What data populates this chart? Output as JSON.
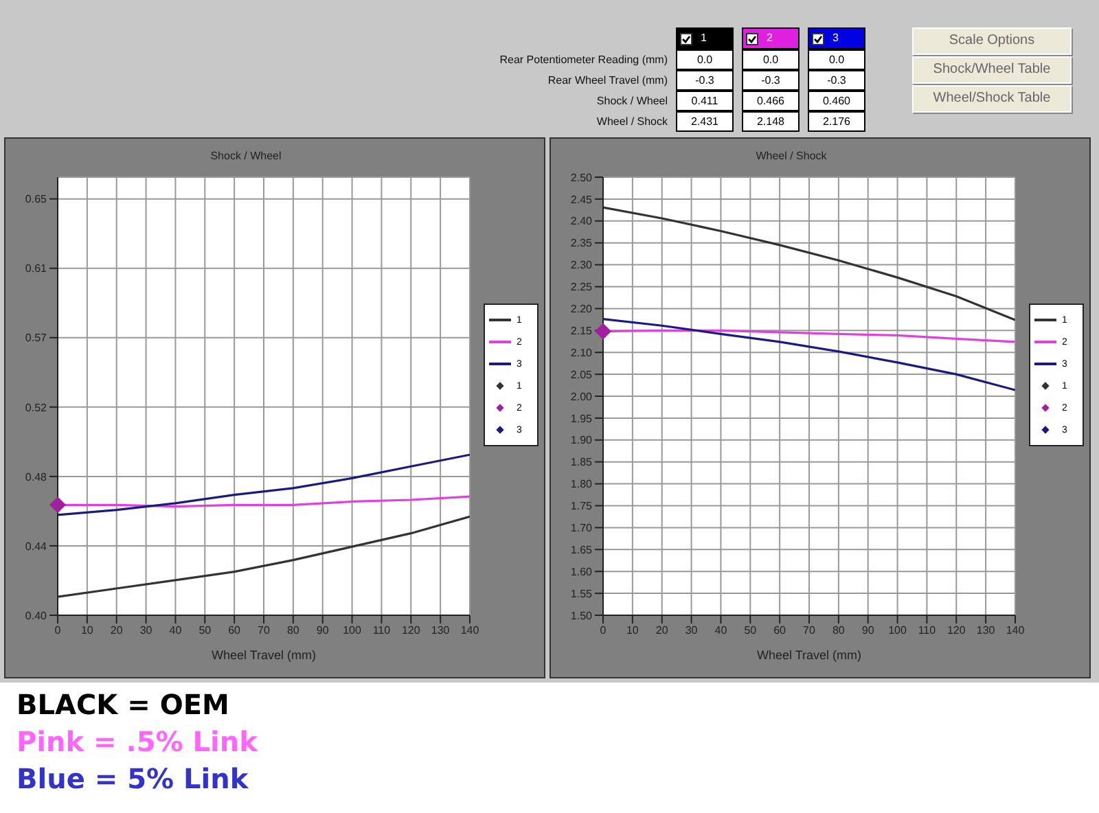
{
  "chart_data": [
    {
      "type": "other",
      "categories": [
        "1",
        "2",
        "3"
      ],
      "colors": [
        "#000000",
        "#e020e0",
        "#0000e0"
      ],
      "y_categories": [
        "Rear Potentiometer Reading (mm)",
        "Rear Wheel Travel (mm)",
        "Shock / Wheel",
        "Wheel / Shock"
      ],
      "cell_labels": [
        [
          "0.0",
          "0.0",
          "0.0"
        ],
        [
          "-0.3",
          "-0.3",
          "-0.3"
        ],
        [
          "0.411",
          "0.466",
          "0.460"
        ],
        [
          "2.431",
          "2.148",
          "2.176"
        ]
      ],
      "annotations": [
        "Scale Options",
        "Shock/Wheel Table",
        "Wheel/Shock Table"
      ]
    },
    {
      "type": "line",
      "title": "Shock / Wheel",
      "xlabel": "Wheel Travel (mm)",
      "x": [
        0,
        20,
        40,
        60,
        80,
        100,
        120,
        140
      ],
      "xlim": [
        0,
        140
      ],
      "xticks": [
        0,
        10,
        20,
        30,
        40,
        50,
        60,
        70,
        80,
        90,
        100,
        110,
        120,
        130,
        140
      ],
      "ylim": [
        0.4,
        0.662
      ],
      "yticks": [
        {
          "value": 0.4,
          "label": "0.40"
        },
        {
          "value": 0.4415,
          "label": "0.44"
        },
        {
          "value": 0.483,
          "label": "0.48"
        },
        {
          "value": 0.5245,
          "label": "0.52"
        },
        {
          "value": 0.566,
          "label": "0.57"
        },
        {
          "value": 0.6075,
          "label": "0.61"
        },
        {
          "value": 0.649,
          "label": "0.65"
        }
      ],
      "grid": true,
      "legend": "right",
      "line_style": "solid",
      "marker": "none",
      "series": [
        {
          "name": "1",
          "color": "#333333",
          "values": [
            0.411,
            0.416,
            0.421,
            0.426,
            0.433,
            0.441,
            0.449,
            0.459
          ]
        },
        {
          "name": "2",
          "color": "#e040e0",
          "values": [
            0.466,
            0.466,
            0.465,
            0.466,
            0.466,
            0.468,
            0.469,
            0.471
          ]
        },
        {
          "name": "3",
          "color": "#1a1a80",
          "values": [
            0.46,
            0.463,
            0.467,
            0.472,
            0.476,
            0.482,
            0.489,
            0.496
          ]
        },
        {
          "name": "1",
          "type": "scatter",
          "marker": "diamond",
          "color": "#333333",
          "values": [
            null,
            null,
            null,
            null,
            null,
            null,
            null,
            null
          ]
        },
        {
          "name": "2",
          "type": "scatter",
          "marker": "diamond",
          "color": "#a020a0",
          "x": [
            0
          ],
          "values": [
            0.466
          ]
        },
        {
          "name": "3",
          "type": "scatter",
          "marker": "diamond",
          "color": "#1a1a80",
          "values": [
            null,
            null,
            null,
            null,
            null,
            null,
            null,
            null
          ]
        }
      ],
      "annotations": [
        "BLACK = OEM",
        "Pink = .5% Link",
        "Blue = 5% Link"
      ]
    },
    {
      "type": "line",
      "title": "Wheel / Shock",
      "xlabel": "Wheel Travel (mm)",
      "x": [
        0,
        20,
        40,
        60,
        80,
        100,
        120,
        140
      ],
      "xlim": [
        0,
        140
      ],
      "xticks": [
        0,
        10,
        20,
        30,
        40,
        50,
        60,
        70,
        80,
        90,
        100,
        110,
        120,
        130,
        140
      ],
      "ylim": [
        1.5,
        2.5
      ],
      "yticks": [
        {
          "value": 1.5,
          "label": "1.50"
        },
        {
          "value": 1.55,
          "label": "1.55"
        },
        {
          "value": 1.6,
          "label": "1.60"
        },
        {
          "value": 1.65,
          "label": "1.65"
        },
        {
          "value": 1.7,
          "label": "1.70"
        },
        {
          "value": 1.75,
          "label": "1.75"
        },
        {
          "value": 1.8,
          "label": "1.80"
        },
        {
          "value": 1.85,
          "label": "1.85"
        },
        {
          "value": 1.9,
          "label": "1.90"
        },
        {
          "value": 1.95,
          "label": "1.95"
        },
        {
          "value": 2.0,
          "label": "2.00"
        },
        {
          "value": 2.05,
          "label": "2.05"
        },
        {
          "value": 2.1,
          "label": "2.10"
        },
        {
          "value": 2.15,
          "label": "2.15"
        },
        {
          "value": 2.2,
          "label": "2.20"
        },
        {
          "value": 2.25,
          "label": "2.25"
        },
        {
          "value": 2.3,
          "label": "2.30"
        },
        {
          "value": 2.35,
          "label": "2.35"
        },
        {
          "value": 2.4,
          "label": "2.40"
        },
        {
          "value": 2.45,
          "label": "2.45"
        },
        {
          "value": 2.5,
          "label": "2.50"
        }
      ],
      "grid": true,
      "legend": "right",
      "line_style": "solid",
      "marker": "none",
      "series": [
        {
          "name": "1",
          "color": "#333333",
          "values": [
            2.431,
            2.406,
            2.377,
            2.345,
            2.31,
            2.271,
            2.228,
            2.174
          ]
        },
        {
          "name": "2",
          "color": "#e040e0",
          "values": [
            2.148,
            2.15,
            2.15,
            2.146,
            2.142,
            2.139,
            2.131,
            2.124
          ]
        },
        {
          "name": "3",
          "color": "#1a1a80",
          "values": [
            2.176,
            2.161,
            2.142,
            2.124,
            2.102,
            2.077,
            2.05,
            2.014
          ]
        },
        {
          "name": "1",
          "type": "scatter",
          "marker": "diamond",
          "color": "#333333",
          "values": [
            null,
            null,
            null,
            null,
            null,
            null,
            null,
            null
          ]
        },
        {
          "name": "2",
          "type": "scatter",
          "marker": "diamond",
          "color": "#a020a0",
          "x": [
            0
          ],
          "values": [
            2.148
          ]
        },
        {
          "name": "3",
          "type": "scatter",
          "marker": "diamond",
          "color": "#1a1a80",
          "values": [
            null,
            null,
            null,
            null,
            null,
            null,
            null,
            null
          ]
        }
      ]
    }
  ]
}
